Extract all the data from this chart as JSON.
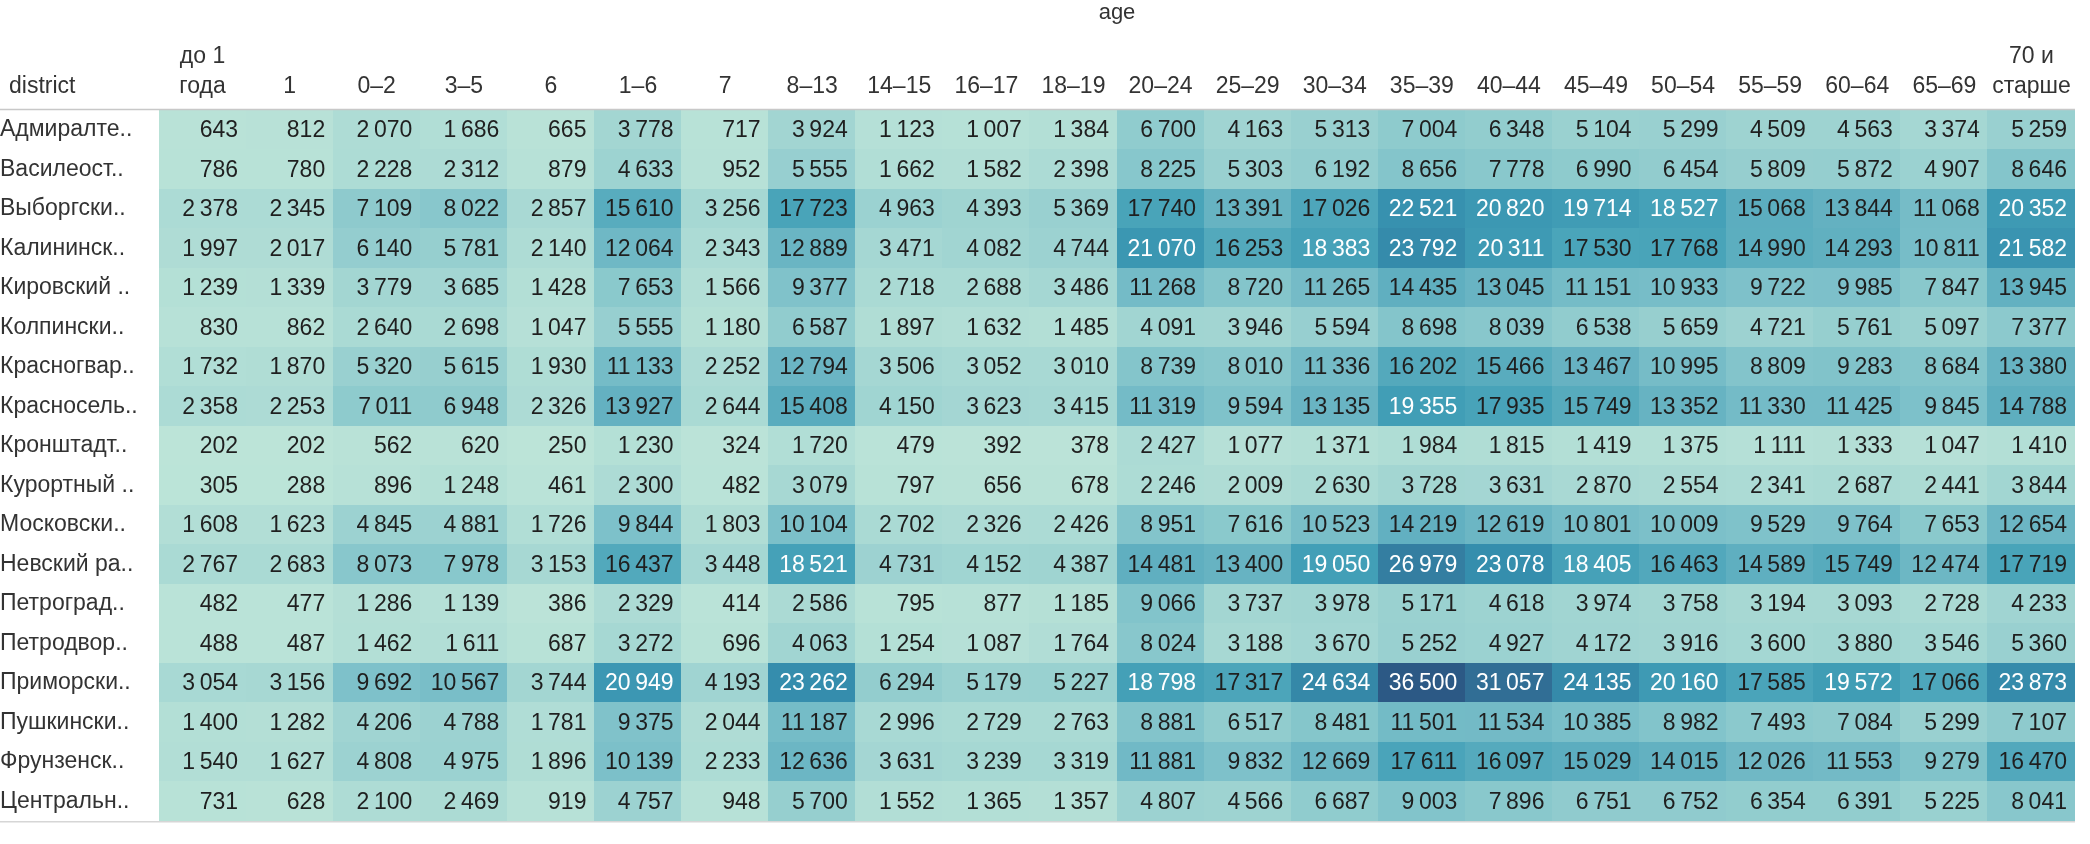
{
  "chart_data": {
    "type": "heatmap",
    "xlabel": "age",
    "ylabel": "district",
    "categories": [
      "до 1 года",
      "1",
      "0–2",
      "3–5",
      "6",
      "1–6",
      "7",
      "8–13",
      "14–15",
      "16–17",
      "18–19",
      "20–24",
      "25–29",
      "30–34",
      "35–39",
      "40–44",
      "45–49",
      "50–54",
      "55–59",
      "60–64",
      "65–69",
      "70 и старше"
    ],
    "y_categories": [
      "Адмиралте..",
      "Василеост..",
      "Выборгски..",
      "Калининск..",
      "Кировский ..",
      "Колпински..",
      "Красногвар..",
      "Красносель..",
      "Кронштадт..",
      "Курортный ..",
      "Московски..",
      "Невский ра..",
      "Петроград..",
      "Петродвор..",
      "Приморски..",
      "Пушкински..",
      "Фрунзенск..",
      "Центральн.."
    ],
    "cells": [
      [
        643,
        812,
        2070,
        1686,
        665,
        3778,
        717,
        3924,
        1123,
        1007,
        1384,
        6700,
        4163,
        5313,
        7004,
        6348,
        5104,
        5299,
        4509,
        4563,
        3374,
        5259
      ],
      [
        786,
        780,
        2228,
        2312,
        879,
        4633,
        952,
        5555,
        1662,
        1582,
        2398,
        8225,
        5303,
        6192,
        8656,
        7778,
        6990,
        6454,
        5809,
        5872,
        4907,
        8646
      ],
      [
        2378,
        2345,
        7109,
        8022,
        2857,
        15610,
        3256,
        17723,
        4963,
        4393,
        5369,
        17740,
        13391,
        17026,
        22521,
        20820,
        19714,
        18527,
        15068,
        13844,
        11068,
        20352
      ],
      [
        1997,
        2017,
        6140,
        5781,
        2140,
        12064,
        2343,
        12889,
        3471,
        4082,
        4744,
        21070,
        16253,
        18383,
        23792,
        20311,
        17530,
        17768,
        14990,
        14293,
        10811,
        21582
      ],
      [
        1239,
        1339,
        3779,
        3685,
        1428,
        7653,
        1566,
        9377,
        2718,
        2688,
        3486,
        11268,
        8720,
        11265,
        14435,
        13045,
        11151,
        10933,
        9722,
        9985,
        7847,
        13945
      ],
      [
        830,
        862,
        2640,
        2698,
        1047,
        5555,
        1180,
        6587,
        1897,
        1632,
        1485,
        4091,
        3946,
        5594,
        8698,
        8039,
        6538,
        5659,
        4721,
        5761,
        5097,
        7377
      ],
      [
        1732,
        1870,
        5320,
        5615,
        1930,
        11133,
        2252,
        12794,
        3506,
        3052,
        3010,
        8739,
        8010,
        11336,
        16202,
        15466,
        13467,
        10995,
        8809,
        9283,
        8684,
        13380
      ],
      [
        2358,
        2253,
        7011,
        6948,
        2326,
        13927,
        2644,
        15408,
        4150,
        3623,
        3415,
        11319,
        9594,
        13135,
        19355,
        17935,
        15749,
        13352,
        11330,
        11425,
        9845,
        14788
      ],
      [
        202,
        202,
        562,
        620,
        250,
        1230,
        324,
        1720,
        479,
        392,
        378,
        2427,
        1077,
        1371,
        1984,
        1815,
        1419,
        1375,
        1111,
        1333,
        1047,
        1410
      ],
      [
        305,
        288,
        896,
        1248,
        461,
        2300,
        482,
        3079,
        797,
        656,
        678,
        2246,
        2009,
        2630,
        3728,
        3631,
        2870,
        2554,
        2341,
        2687,
        2441,
        3844
      ],
      [
        1608,
        1623,
        4845,
        4881,
        1726,
        9844,
        1803,
        10104,
        2702,
        2326,
        2426,
        8951,
        7616,
        10523,
        14219,
        12619,
        10801,
        10009,
        9529,
        9764,
        7653,
        12654
      ],
      [
        2767,
        2683,
        8073,
        7978,
        3153,
        16437,
        3448,
        18521,
        4731,
        4152,
        4387,
        14481,
        13400,
        19050,
        26979,
        23078,
        18405,
        16463,
        14589,
        15749,
        12474,
        17719
      ],
      [
        482,
        477,
        1286,
        1139,
        386,
        2329,
        414,
        2586,
        795,
        877,
        1185,
        9066,
        3737,
        3978,
        5171,
        4618,
        3974,
        3758,
        3194,
        3093,
        2728,
        4233
      ],
      [
        488,
        487,
        1462,
        1611,
        687,
        3272,
        696,
        4063,
        1254,
        1087,
        1764,
        8024,
        3188,
        3670,
        5252,
        4927,
        4172,
        3916,
        3600,
        3880,
        3546,
        5360
      ],
      [
        3054,
        3156,
        9692,
        10567,
        3744,
        20949,
        4193,
        23262,
        6294,
        5179,
        5227,
        18798,
        17317,
        24634,
        36500,
        31057,
        24135,
        20160,
        17585,
        19572,
        17066,
        23873
      ],
      [
        1400,
        1282,
        4206,
        4788,
        1781,
        9375,
        2044,
        11187,
        2996,
        2729,
        2763,
        8881,
        6517,
        8481,
        11501,
        11534,
        10385,
        8982,
        7493,
        7084,
        5299,
        7107
      ],
      [
        1540,
        1627,
        4808,
        4975,
        1896,
        10139,
        2233,
        12636,
        3631,
        3239,
        3319,
        11881,
        9832,
        12669,
        17611,
        16097,
        15029,
        14015,
        12026,
        11553,
        9279,
        16470
      ],
      [
        731,
        628,
        2100,
        2469,
        919,
        4757,
        948,
        5700,
        1552,
        1365,
        1357,
        4807,
        4566,
        6687,
        9003,
        7896,
        6751,
        6752,
        6354,
        6391,
        5225,
        8041
      ]
    ],
    "data_labels": true
  }
}
